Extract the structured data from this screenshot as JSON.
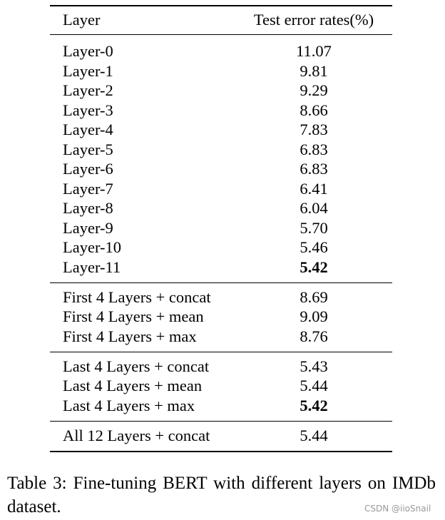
{
  "table": {
    "header": [
      "Layer",
      "Test error rates(%)"
    ],
    "groups": [
      [
        {
          "layer": "Layer-0",
          "error": "11.07"
        },
        {
          "layer": "Layer-1",
          "error": "9.81"
        },
        {
          "layer": "Layer-2",
          "error": "9.29"
        },
        {
          "layer": "Layer-3",
          "error": "8.66"
        },
        {
          "layer": "Layer-4",
          "error": "7.83"
        },
        {
          "layer": "Layer-5",
          "error": "6.83"
        },
        {
          "layer": "Layer-6",
          "error": "6.83"
        },
        {
          "layer": "Layer-7",
          "error": "6.41"
        },
        {
          "layer": "Layer-8",
          "error": "6.04"
        },
        {
          "layer": "Layer-9",
          "error": "5.70"
        },
        {
          "layer": "Layer-10",
          "error": "5.46"
        },
        {
          "layer": "Layer-11",
          "error": "5.42",
          "bold": true
        }
      ],
      [
        {
          "layer": "First 4 Layers + concat",
          "error": "8.69"
        },
        {
          "layer": "First 4 Layers + mean",
          "error": "9.09"
        },
        {
          "layer": "First 4 Layers + max",
          "error": "8.76"
        }
      ],
      [
        {
          "layer": "Last 4 Layers + concat",
          "error": "5.43"
        },
        {
          "layer": "Last 4 Layers + mean",
          "error": "5.44"
        },
        {
          "layer": "Last 4 Layers + max",
          "error": "5.42",
          "bold": true
        }
      ],
      [
        {
          "layer": "All 12 Layers + concat",
          "error": "5.44"
        }
      ]
    ]
  },
  "caption": "Table 3: Fine-tuning BERT with different layers on IMDb dataset.",
  "watermark": "CSDN @iioSnail"
}
